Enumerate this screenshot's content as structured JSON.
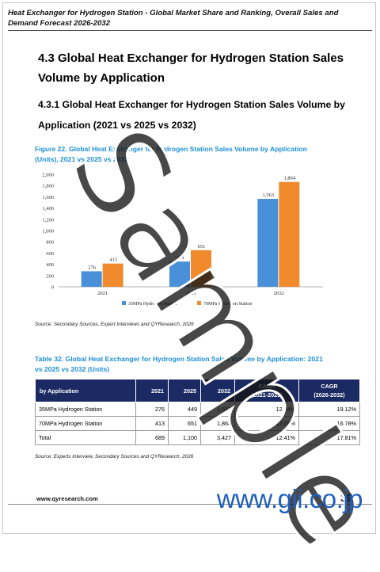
{
  "header": {
    "title": "Heat Exchanger for Hydrogen Station - Global Market Share and Ranking, Overall Sales and Demand Forecast 2026-2032"
  },
  "section": {
    "heading_line1": "4.3  Global Heat Exchanger for Hydrogen Station Sales",
    "heading_line2": "Volume by Application",
    "sub_line1": "4.3.1  Global Heat Exchanger for Hydrogen Station Sales Volume by",
    "sub_line2": "Application (2021 vs 2025 vs 2032)"
  },
  "figure": {
    "caption_line1": "Figure 22.   Global Heat Exchanger for Hydrogen Station Sales Volume by Application",
    "caption_line2": "(Units), 2021 vs 2025 vs 2032",
    "source": "Source: Secondary Sources, Expert Interviews and QYResearch, 2026"
  },
  "chart_data": {
    "type": "bar",
    "categories": [
      "2021",
      "2025",
      "2032"
    ],
    "series": [
      {
        "name": "35MPa Hydrogen Station",
        "values": [
          276,
          449,
          1563
        ],
        "color": "#4a90d9"
      },
      {
        "name": "70MPa Hydrogen Station",
        "values": [
          413,
          651,
          1864
        ],
        "color": "#f08a2c"
      }
    ],
    "value_labels": [
      [
        "276",
        "449",
        "1,563"
      ],
      [
        "413",
        "651",
        "1,864"
      ]
    ],
    "yticks": [
      "2,000",
      "1,800",
      "1,600",
      "1,400",
      "1,200",
      "1,000",
      "800",
      "600",
      "400",
      "200",
      "0"
    ],
    "ylim": [
      0,
      2000
    ],
    "legend": "bottom",
    "grid": false
  },
  "table": {
    "caption_line1": "Table 32.   Global Heat Exchanger for Hydrogen Station Sales Volume by Application: 2021",
    "caption_line2": "vs 2025 vs 2032 (Units)",
    "headers": [
      "by Application",
      "2021",
      "2025",
      "2032",
      "CAGR",
      "CAGR"
    ],
    "headers_sub": [
      "(2021-2025)",
      "(2026-2032)"
    ],
    "rows": [
      [
        "35MPa Hydrogen Station",
        "276",
        "449",
        "1,563",
        "12.94%",
        "19.12%"
      ],
      [
        "70MPa Hydrogen Station",
        "413",
        "651",
        "1,864",
        "12.05%",
        "16.78%"
      ],
      [
        "Total",
        "689",
        "1,100",
        "3,427",
        "12.41%",
        "17.81%"
      ]
    ],
    "source": "Source: Experts Interview, Secondary Sources and QYResearch, 2026"
  },
  "footer": {
    "url": "www.qyresearch.com",
    "page": "39",
    "gii": "www.gii.co.jp"
  },
  "watermark": "Sample"
}
